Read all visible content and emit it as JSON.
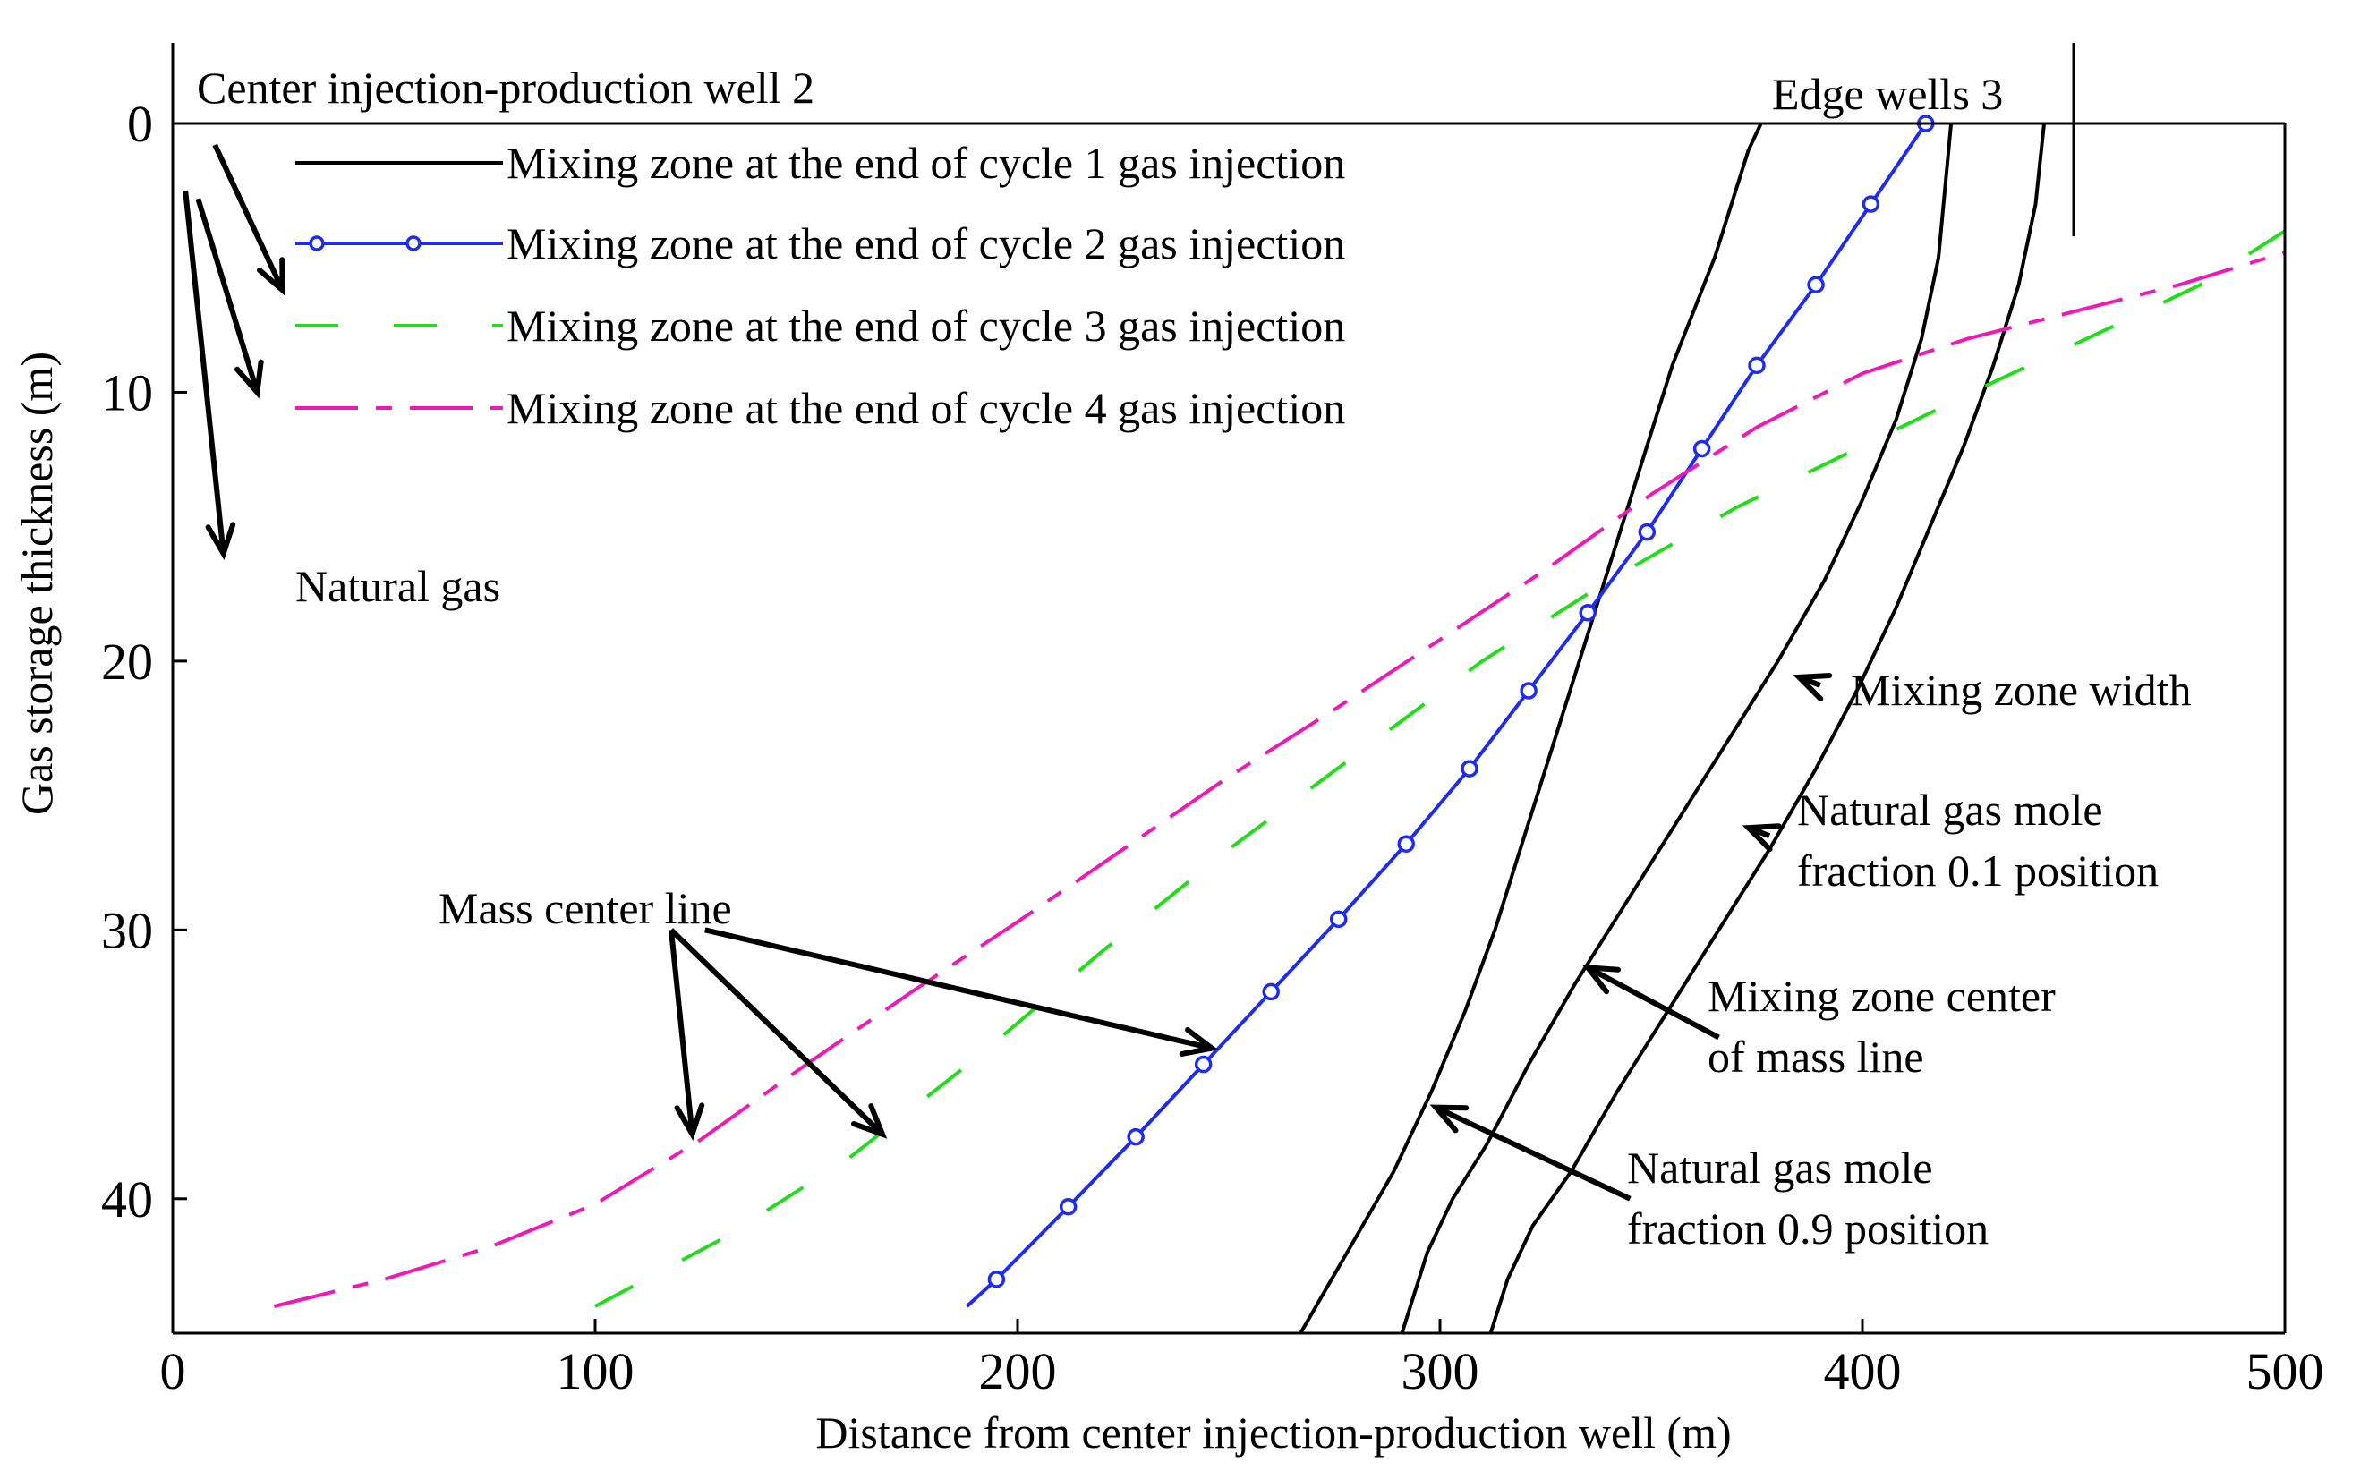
{
  "chart_data": {
    "type": "line",
    "title": "",
    "xlabel": "Distance from center injection-production well (m)",
    "ylabel": "Gas storage thickness (m)",
    "xlim": [
      0,
      500
    ],
    "ylim": [
      0,
      45
    ],
    "y_inverted": true,
    "xticks": [
      0,
      100,
      200,
      300,
      400,
      500
    ],
    "yticks": [
      0,
      10,
      20,
      30,
      40
    ],
    "grid": false,
    "legend_position": "top-left",
    "colors": {
      "cycle1": "#000000",
      "cycle2": "#1e2cf0",
      "cycle3": "#22dd1c",
      "cycle4": "#ee1ab8",
      "arrow": "#000000"
    },
    "series": [
      {
        "name": "Mixing zone at the end of cycle 1 gas injection",
        "style": "solid",
        "color": "#000000",
        "role": "mixing zone boundary (natural gas mole fraction 0.9 position)",
        "x": [
          267,
          278,
          289,
          298,
          306,
          313,
          319,
          325,
          331,
          337,
          343,
          349,
          355,
          360,
          365,
          369,
          373,
          376
        ],
        "y": [
          45,
          42,
          39,
          36,
          33,
          30,
          27,
          24,
          21,
          18,
          15,
          12,
          9,
          7,
          5,
          3,
          1,
          0
        ]
      },
      {
        "name": "Mixing zone at the end of cycle 1 gas injection",
        "style": "solid",
        "color": "#000000",
        "role": "mixing zone center of mass line",
        "x": [
          291,
          297,
          303,
          311,
          321,
          332,
          344,
          356,
          368,
          380,
          391,
          400,
          408,
          414,
          418,
          421
        ],
        "y": [
          45,
          42,
          40,
          38,
          35,
          32,
          29,
          26,
          23,
          20,
          17,
          14,
          11,
          8,
          5,
          0
        ]
      },
      {
        "name": "Mixing zone at the end of cycle 1 gas injection",
        "style": "solid",
        "color": "#000000",
        "role": "natural gas mole fraction 0.1 position",
        "x": [
          312,
          316,
          322,
          331,
          342,
          354,
          366,
          378,
          389,
          399,
          408,
          416,
          424,
          431,
          437,
          441,
          443
        ],
        "y": [
          45,
          43,
          41,
          39,
          36,
          33,
          30,
          27,
          24,
          21,
          18,
          15,
          12,
          9,
          6,
          3,
          0
        ]
      },
      {
        "name": "Mixing zone at the end of cycle 2 gas injection",
        "style": "solid-marker",
        "color": "#1e2cf0",
        "x": [
          188,
          195,
          212,
          228,
          244,
          260,
          276,
          292,
          307,
          321,
          335,
          349,
          362,
          375,
          389,
          402,
          415
        ],
        "y": [
          44,
          43,
          40.3,
          37.7,
          35,
          32.3,
          29.6,
          26.8,
          24,
          21.1,
          18.2,
          15.2,
          12.1,
          9,
          6,
          3,
          0
        ]
      },
      {
        "name": "Mixing zone at the end of cycle 3 gas injection",
        "style": "dashed",
        "color": "#22dd1c",
        "x": [
          100,
          130,
          160,
          190,
          220,
          250,
          280,
          310,
          340,
          370,
          400,
          430,
          460,
          480,
          500
        ],
        "y": [
          44,
          41.5,
          38.5,
          34.8,
          30.8,
          27,
          23.5,
          20,
          17,
          14.3,
          12,
          9.7,
          7.5,
          6,
          4
        ]
      },
      {
        "name": "Mixing zone at the end of cycle 4 gas injection",
        "style": "dashdot",
        "color": "#ee1ab8",
        "x": [
          24,
          50,
          75,
          100,
          125,
          150,
          175,
          200,
          225,
          250,
          275,
          300,
          325,
          350,
          375,
          400,
          425,
          450,
          475,
          500
        ],
        "y": [
          44,
          43,
          41.8,
          40.2,
          37.8,
          35,
          32.3,
          29.7,
          27,
          24.3,
          21.8,
          19.2,
          16.6,
          13.8,
          11.3,
          9.3,
          8,
          7,
          6,
          4.8
        ]
      }
    ],
    "vertical_lines": [
      {
        "x": 450,
        "y_from": -3,
        "y_to": 4.2,
        "label": "Edge wells 3"
      }
    ],
    "annotations": {
      "well_label": "Center injection-production well 2",
      "edge_label": "Edge wells 3",
      "natural_gas": "Natural gas",
      "mass_center": "Mass center line",
      "mixing_width": "Mixing zone width",
      "mole01_line1": "Natural gas mole",
      "mole01_line2": "fraction 0.1 position",
      "center_line1": "Mixing zone center",
      "center_line2": "of mass line",
      "mole09_line1": "Natural gas mole",
      "mole09_line2": "fraction 0.9 position"
    },
    "arrows": [
      {
        "from": [
          10,
          0.8
        ],
        "to": [
          26,
          6.2
        ],
        "role": "natural gas arrow"
      },
      {
        "from": [
          6,
          2.8
        ],
        "to": [
          20,
          10
        ],
        "role": "natural gas arrow"
      },
      {
        "from": [
          3,
          2.5
        ],
        "to": [
          12,
          16
        ],
        "role": "natural gas arrow"
      },
      {
        "from": [
          118,
          30
        ],
        "to": [
          123,
          37.6
        ],
        "role": "mass center arrow"
      },
      {
        "from": [
          118,
          30
        ],
        "to": [
          168,
          37.6
        ],
        "role": "mass center arrow"
      },
      {
        "from": [
          126,
          30
        ],
        "to": [
          246,
          34.4
        ],
        "role": "mass center arrow"
      },
      {
        "from": [
          390,
          20.9
        ],
        "to": [
          385,
          20.6
        ],
        "role": "mixing zone width arrow"
      },
      {
        "from": [
          378,
          26.5
        ],
        "to": [
          373,
          26.2
        ],
        "role": "mole fraction 0.1 arrow"
      },
      {
        "from": [
          366,
          34
        ],
        "to": [
          335,
          31.4
        ],
        "role": "center of mass arrow"
      },
      {
        "from": [
          345,
          40
        ],
        "to": [
          299,
          36.6
        ],
        "role": "mole fraction 0.9 arrow"
      }
    ]
  }
}
